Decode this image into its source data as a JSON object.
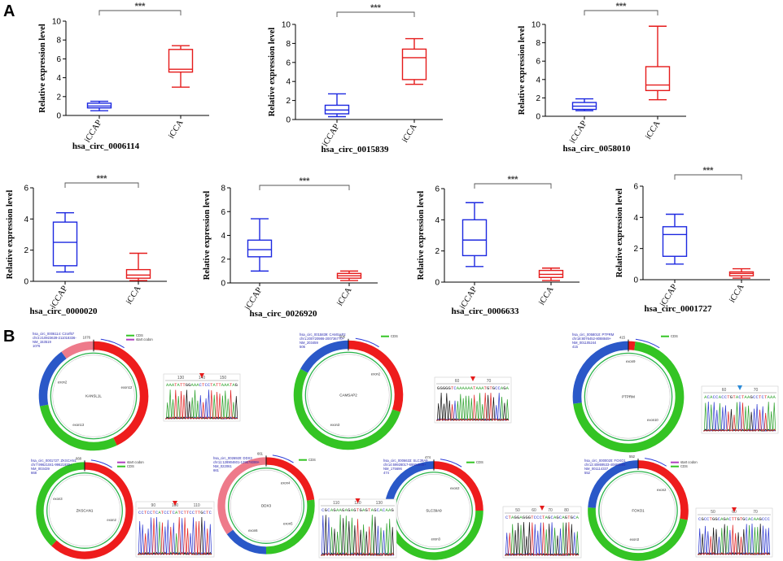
{
  "panels": {
    "a": "A",
    "b": "B"
  },
  "colors": {
    "iccap": "#1c28e0",
    "icca": "#e51b1b",
    "ring_red": "#ee1c1c",
    "ring_green": "#34c424",
    "ring_blue": "#2a58c8",
    "ring_pink": "#ee7a8a",
    "inner": "#2ab44a"
  },
  "chart_data": [
    {
      "type": "box",
      "title": "hsa_circ_0006114",
      "ylabel": "Relative expression level",
      "categories": [
        "iCCAP",
        "iCCA"
      ],
      "ylim": [
        0,
        10
      ],
      "yticks": [
        0,
        2,
        4,
        6,
        8,
        10
      ],
      "significance": "***",
      "boxes": [
        {
          "min": 0.5,
          "q1": 0.8,
          "median": 1.0,
          "q3": 1.3,
          "max": 1.5
        },
        {
          "min": 3.0,
          "q1": 4.6,
          "median": 4.9,
          "q3": 7.0,
          "max": 7.4
        }
      ]
    },
    {
      "type": "box",
      "title": "hsa_circ_0015839",
      "ylabel": "Relative expression level",
      "categories": [
        "iCCAP",
        "iCCA"
      ],
      "ylim": [
        0,
        10
      ],
      "yticks": [
        0,
        2,
        4,
        6,
        8,
        10
      ],
      "significance": "***",
      "boxes": [
        {
          "min": 0.3,
          "q1": 0.6,
          "median": 1.0,
          "q3": 1.5,
          "max": 2.7
        },
        {
          "min": 3.7,
          "q1": 4.2,
          "median": 6.5,
          "q3": 7.4,
          "max": 8.5
        }
      ]
    },
    {
      "type": "box",
      "title": "hsa_circ_0058010",
      "ylabel": "Relative expression level",
      "categories": [
        "iCCAP",
        "iCCA"
      ],
      "ylim": [
        0,
        10
      ],
      "yticks": [
        0,
        2,
        4,
        6,
        8,
        10
      ],
      "significance": "***",
      "boxes": [
        {
          "min": 0.6,
          "q1": 0.75,
          "median": 1.1,
          "q3": 1.5,
          "max": 1.9
        },
        {
          "min": 1.8,
          "q1": 2.8,
          "median": 3.4,
          "q3": 5.4,
          "max": 9.8
        }
      ]
    },
    {
      "type": "box",
      "title": "hsa_circ_0000020",
      "ylabel": "Relative expression level",
      "categories": [
        "iCCAP",
        "iCCA"
      ],
      "ylim": [
        0,
        6
      ],
      "yticks": [
        0,
        2,
        4,
        6
      ],
      "significance": "***",
      "boxes": [
        {
          "min": 0.6,
          "q1": 1.0,
          "median": 2.5,
          "q3": 3.8,
          "max": 4.4
        },
        {
          "min": 0.05,
          "q1": 0.2,
          "median": 0.4,
          "q3": 0.75,
          "max": 1.8
        }
      ]
    },
    {
      "type": "box",
      "title": "hsa_circ_0026920",
      "ylabel": "Relative expression level",
      "categories": [
        "iCCAP",
        "iCCA"
      ],
      "ylim": [
        0,
        8
      ],
      "yticks": [
        0,
        2,
        4,
        6,
        8
      ],
      "significance": "***",
      "boxes": [
        {
          "min": 1.0,
          "q1": 2.2,
          "median": 2.8,
          "q3": 3.6,
          "max": 5.4
        },
        {
          "min": 0.2,
          "q1": 0.4,
          "median": 0.6,
          "q3": 0.8,
          "max": 1.0
        }
      ]
    },
    {
      "type": "box",
      "title": "hsa_circ_0006633",
      "ylabel": "Relative expression level",
      "categories": [
        "iCCAP",
        "iCCA"
      ],
      "ylim": [
        0,
        6
      ],
      "yticks": [
        0,
        2,
        4,
        6
      ],
      "significance": "***",
      "boxes": [
        {
          "min": 1.0,
          "q1": 1.7,
          "median": 2.7,
          "q3": 4.0,
          "max": 5.1
        },
        {
          "min": 0.1,
          "q1": 0.3,
          "median": 0.5,
          "q3": 0.75,
          "max": 0.9
        }
      ]
    },
    {
      "type": "box",
      "title": "hsa_circ_0001727",
      "ylabel": "Relative expression level",
      "categories": [
        "iCCAP",
        "iCCA"
      ],
      "ylim": [
        0,
        6
      ],
      "yticks": [
        0,
        2,
        4,
        6
      ],
      "significance": "***",
      "boxes": [
        {
          "min": 1.0,
          "q1": 1.5,
          "median": 2.9,
          "q3": 3.4,
          "max": 4.2
        },
        {
          "min": 0.1,
          "q1": 0.25,
          "median": 0.4,
          "q3": 0.5,
          "max": 0.7
        }
      ]
    }
  ],
  "rings": [
    {
      "gene": "KANSL1L",
      "info": [
        "hsa_circ_0006114: C2orf67",
        "chr2:210923639-211018336-",
        "NM_153519",
        "1076"
      ],
      "size": "1076",
      "legend": [
        "CDS",
        "start codon"
      ],
      "segments": [
        {
          "from": 0,
          "to": 0.43,
          "color": "ring_red"
        },
        {
          "from": 0.43,
          "to": 0.72,
          "color": "ring_green"
        },
        {
          "from": 0.72,
          "to": 0.9,
          "color": "ring_blue"
        },
        {
          "from": 0.9,
          "to": 1.0,
          "color": "ring_pink"
        }
      ],
      "exons": [
        "exon12",
        "exon13",
        "exon2"
      ]
    },
    {
      "gene": "CAMSAP2",
      "info": [
        "hsa_circ_0015839: CAMSAP2",
        "chr1:200720986-200736770+",
        "NM_203459",
        "506"
      ],
      "size": "506",
      "legend": [
        "CDS"
      ],
      "segments": [
        {
          "from": 0,
          "to": 0.3,
          "color": "ring_red"
        },
        {
          "from": 0.3,
          "to": 0.83,
          "color": "ring_green"
        },
        {
          "from": 0.83,
          "to": 1.0,
          "color": "ring_blue"
        }
      ],
      "exons": [
        "exon2",
        "exon3"
      ]
    },
    {
      "gene": "PTPRM",
      "info": [
        "hsa_circ_0058010: PTPRM",
        "chr18:8076452-8088849+",
        "NM_001105244",
        "415"
      ],
      "size": "415",
      "legend": [
        "CDS"
      ],
      "segments": [
        {
          "from": 0,
          "to": 0.02,
          "color": "ring_red"
        },
        {
          "from": 0.02,
          "to": 0.73,
          "color": "ring_green"
        },
        {
          "from": 0.73,
          "to": 1.0,
          "color": "ring_blue"
        }
      ],
      "exons": [
        "exon9",
        "exon10"
      ]
    },
    {
      "gene": "ZKSCAN1",
      "info": [
        "hsa_circ_0001727: ZKSCAN1",
        "chr7:99621041-99621930+",
        "NM_003439",
        "668"
      ],
      "size": "668",
      "legend": [
        "start codon",
        "CDS"
      ],
      "segments": [
        {
          "from": 0,
          "to": 0.62,
          "color": "ring_red"
        },
        {
          "from": 0.62,
          "to": 1.0,
          "color": "ring_green"
        }
      ],
      "exons": [
        "exon2",
        "exon3"
      ]
    },
    {
      "gene": "DDX3",
      "info": [
        "hsa_circ_0026920: DDX3",
        "chr11:128904601-129676099+",
        "NM_022061",
        "661"
      ],
      "size": "661",
      "legend": [
        "CDS"
      ],
      "segments": [
        {
          "from": 0,
          "to": 0.23,
          "color": "ring_red"
        },
        {
          "from": 0.23,
          "to": 0.5,
          "color": "ring_green"
        },
        {
          "from": 0.5,
          "to": 0.65,
          "color": "ring_blue"
        },
        {
          "from": 0.65,
          "to": 1.0,
          "color": "ring_pink"
        }
      ],
      "exons": [
        "exon4",
        "exon5",
        "exon6"
      ]
    },
    {
      "gene": "SLC39A9",
      "info": [
        "hsa_circ_0006633: SLC39A9",
        "chr14:69928017-69934946+",
        "NM_175696",
        "474"
      ],
      "size": "474",
      "legend": [
        "CDS"
      ],
      "segments": [
        {
          "from": 0,
          "to": 0.25,
          "color": "ring_red"
        },
        {
          "from": 0.25,
          "to": 0.73,
          "color": "ring_green"
        },
        {
          "from": 0.73,
          "to": 1.0,
          "color": "ring_blue"
        }
      ],
      "exons": [
        "exon2",
        "exon3"
      ]
    },
    {
      "gene": "FOXO1",
      "info": [
        "hsa_circ_0000020: FOXO1",
        "chr13:40869533-40883394-",
        "NM_001114337",
        "552"
      ],
      "size": "552",
      "legend": [
        "start codon",
        "CDS"
      ],
      "segments": [
        {
          "from": 0,
          "to": 0.28,
          "color": "ring_red"
        },
        {
          "from": 0.28,
          "to": 0.76,
          "color": "ring_green"
        },
        {
          "from": 0.76,
          "to": 1.0,
          "color": "ring_blue"
        }
      ],
      "exons": [
        "exon2",
        "exon3"
      ]
    }
  ],
  "chromatograms": [
    {
      "seq": "AAATATTGGAAACTCCTATTAAATAG",
      "ticks": [
        "130",
        "140",
        "150"
      ],
      "arrow": "red"
    },
    {
      "seq": "GGGGGTCAAAAAATAAATGTGCCAGA",
      "ticks": [
        "60",
        "70"
      ],
      "arrow": "red"
    },
    {
      "seq": "ACACCACCTGTACTAAGCCTCTAAA",
      "ticks": [
        "60",
        "70"
      ],
      "arrow": "blue"
    },
    {
      "seq": "CCTCCTCATCCTCATCTTCCTTGCTC",
      "ticks": [
        "90",
        "100",
        "110"
      ],
      "arrow": "red"
    },
    {
      "seq": "CGCAGAAGAGAGTGAGTAGCACAAG",
      "ticks": [
        "110",
        "120",
        "130"
      ],
      "arrow": "red"
    },
    {
      "seq": "CTAGGAGGGTCCCTAGCAGCAGTGCA",
      "ticks": [
        "50",
        "60",
        "70",
        "80"
      ],
      "arrow": "red"
    },
    {
      "seq": "CGCCTGGCAGACTTGTGCACAAGCCC",
      "ticks": [
        "50",
        "60",
        "70"
      ],
      "arrow": "red"
    }
  ]
}
